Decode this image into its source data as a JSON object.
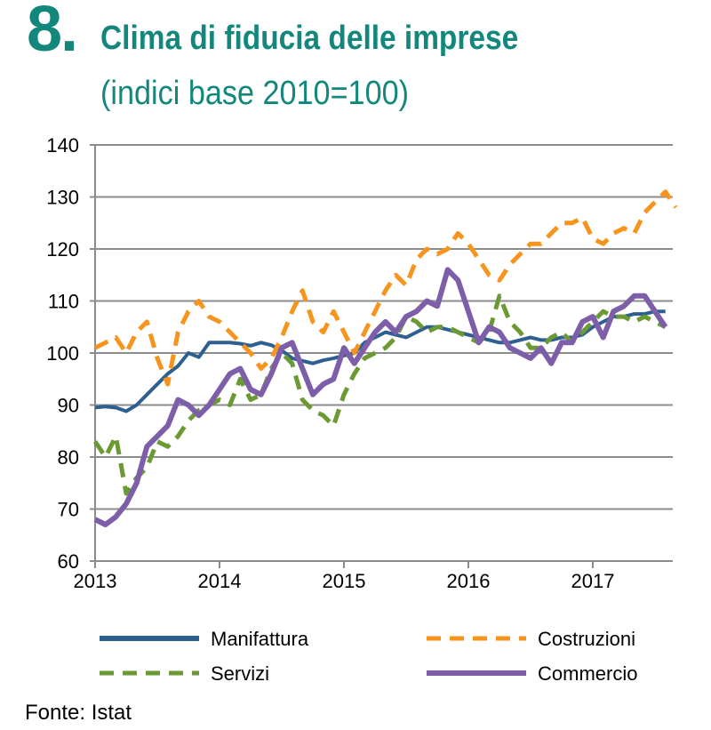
{
  "header": {
    "number": "8.",
    "title": "Clima di fiducia delle imprese",
    "subtitle": "(indici base 2010=100)"
  },
  "source": "Fonte: Istat",
  "chart_data": {
    "type": "line",
    "title": "Clima di fiducia delle imprese",
    "subtitle": "(indici base 2010=100)",
    "x_start": "2013-01",
    "frequency": "monthly",
    "x_ticks": [
      "2013",
      "2014",
      "2015",
      "2016",
      "2017"
    ],
    "ylim": [
      60,
      140
    ],
    "y_ticks": [
      60,
      70,
      80,
      90,
      100,
      110,
      120,
      130,
      140
    ],
    "grid": true,
    "legend": "bottom",
    "series": [
      {
        "name": "Manifattura",
        "color": "#2e5f91",
        "style": "solid",
        "values": [
          89.5,
          89.7,
          89.5,
          88.8,
          90,
          92,
          94,
          96,
          97.5,
          100,
          99.2,
          102,
          102,
          102,
          101.8,
          101.4,
          102,
          101.5,
          100.5,
          99,
          98.5,
          98,
          98.6,
          99,
          99.5,
          100,
          102,
          103,
          104,
          103.5,
          103,
          104,
          105,
          105,
          104.5,
          104,
          103.5,
          103,
          102.5,
          102,
          102,
          102.5,
          103,
          102.5,
          102.5,
          103,
          103,
          103.5,
          105,
          106,
          107,
          107,
          107.5,
          107.5,
          108,
          108
        ]
      },
      {
        "name": "Costruzioni",
        "color": "#f7941d",
        "style": "dashed",
        "values": [
          101,
          102,
          103,
          100,
          104,
          106,
          99,
          94,
          104,
          108,
          110,
          107,
          106,
          104,
          102,
          100,
          97,
          99,
          103,
          108,
          112,
          106,
          104,
          108,
          104,
          100,
          104,
          108,
          112,
          115,
          113,
          118,
          120,
          119,
          120,
          123,
          121,
          118,
          115,
          114,
          117,
          119,
          121,
          121,
          123,
          125,
          125,
          126,
          122,
          121,
          123,
          124,
          123,
          127,
          129,
          131,
          128
        ]
      },
      {
        "name": "Servizi",
        "color": "#6b9a35",
        "style": "dashed",
        "values": [
          83,
          80,
          84,
          73,
          76,
          78,
          83,
          82,
          84,
          87,
          89,
          90,
          91,
          90,
          95,
          91,
          92,
          97,
          100,
          98,
          91,
          89,
          88,
          86,
          92,
          96,
          99,
          100,
          101,
          103,
          107,
          106,
          104,
          105,
          105,
          104,
          103,
          102,
          104,
          111,
          106,
          104,
          101,
          101,
          103,
          104,
          102,
          104,
          106,
          108,
          107,
          107,
          106,
          107,
          106,
          105
        ]
      },
      {
        "name": "Commercio",
        "color": "#7d5ea8",
        "style": "solid",
        "values": [
          68,
          67,
          68.5,
          71,
          75,
          82,
          84,
          86,
          91,
          90,
          88,
          90,
          93,
          96,
          97,
          93,
          92,
          96,
          101,
          102,
          97,
          92,
          94,
          95,
          101,
          98,
          101,
          104,
          106,
          104,
          107,
          108,
          110,
          109,
          116,
          114,
          108,
          102,
          105,
          104,
          101,
          100,
          99,
          101,
          98,
          102,
          102,
          106,
          107,
          103,
          108,
          109,
          111,
          111,
          108,
          105
        ]
      }
    ]
  }
}
